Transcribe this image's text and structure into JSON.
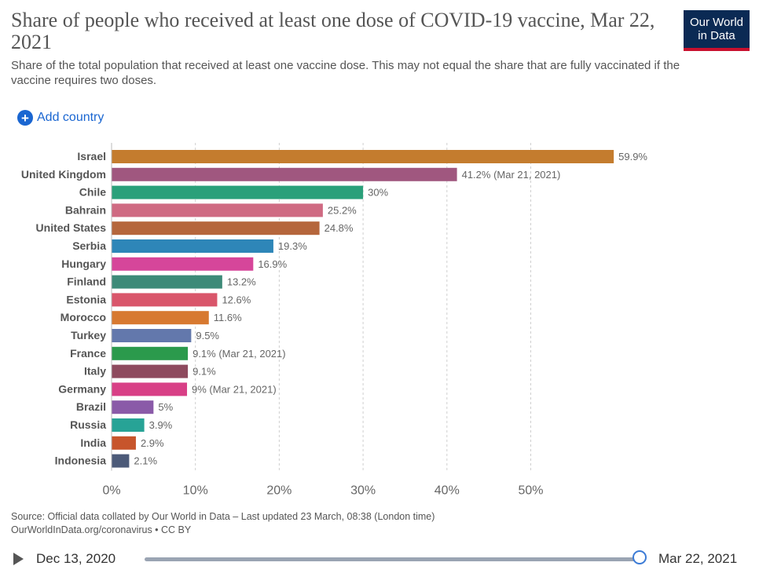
{
  "header": {
    "title": "Share of people who received at least one dose of COVID-19 vaccine, Mar 22, 2021",
    "subtitle": "Share of the total population that received at least one vaccine dose. This may not equal the share that are fully vaccinated if the vaccine requires two doses.",
    "logo_line1": "Our World",
    "logo_line2": "in Data"
  },
  "controls": {
    "add_country_label": "Add country",
    "add_icon": "plus-circle-icon"
  },
  "chart_data": {
    "type": "bar",
    "orientation": "horizontal",
    "title": "Share of people who received at least one dose of COVID-19 vaccine, Mar 22, 2021",
    "xlabel": "",
    "ylabel": "",
    "xlim": [
      0,
      60
    ],
    "xticks": [
      0,
      10,
      20,
      30,
      40,
      50
    ],
    "xtick_labels": [
      "0%",
      "10%",
      "20%",
      "30%",
      "40%",
      "50%"
    ],
    "grid": true,
    "categories": [
      "Israel",
      "United Kingdom",
      "Chile",
      "Bahrain",
      "United States",
      "Serbia",
      "Hungary",
      "Finland",
      "Estonia",
      "Morocco",
      "Turkey",
      "France",
      "Italy",
      "Germany",
      "Brazil",
      "Russia",
      "India",
      "Indonesia"
    ],
    "values": [
      59.9,
      41.2,
      30,
      25.2,
      24.8,
      19.3,
      16.9,
      13.2,
      12.6,
      11.6,
      9.5,
      9.1,
      9.1,
      9,
      5,
      3.9,
      2.9,
      2.1
    ],
    "labels": [
      "59.9%",
      "41.2% (Mar 21, 2021)",
      "30%",
      "25.2%",
      "24.8%",
      "19.3%",
      "16.9%",
      "13.2%",
      "12.6%",
      "11.6%",
      "9.5%",
      "9.1% (Mar 21, 2021)",
      "9.1%",
      "9% (Mar 21, 2021)",
      "5%",
      "3.9%",
      "2.9%",
      "2.1%"
    ],
    "colors": [
      "#c47c2e",
      "#a0577f",
      "#2aa07a",
      "#cf6a82",
      "#b5663c",
      "#2e86b8",
      "#d6469a",
      "#3d8a78",
      "#d9566b",
      "#d77930",
      "#6378ac",
      "#2b9a4c",
      "#8e4a5e",
      "#d83f86",
      "#8a5aa8",
      "#27a396",
      "#c7552c",
      "#4c5a78"
    ]
  },
  "footer": {
    "source_line1": "Source: Official data collated by Our World in Data – Last updated 23 March, 08:38 (London time)",
    "source_line2": "OurWorldInData.org/coronavirus • CC BY"
  },
  "timeline": {
    "start_date": "Dec 13, 2020",
    "end_date": "Mar 22, 2021",
    "position": 1.0
  }
}
